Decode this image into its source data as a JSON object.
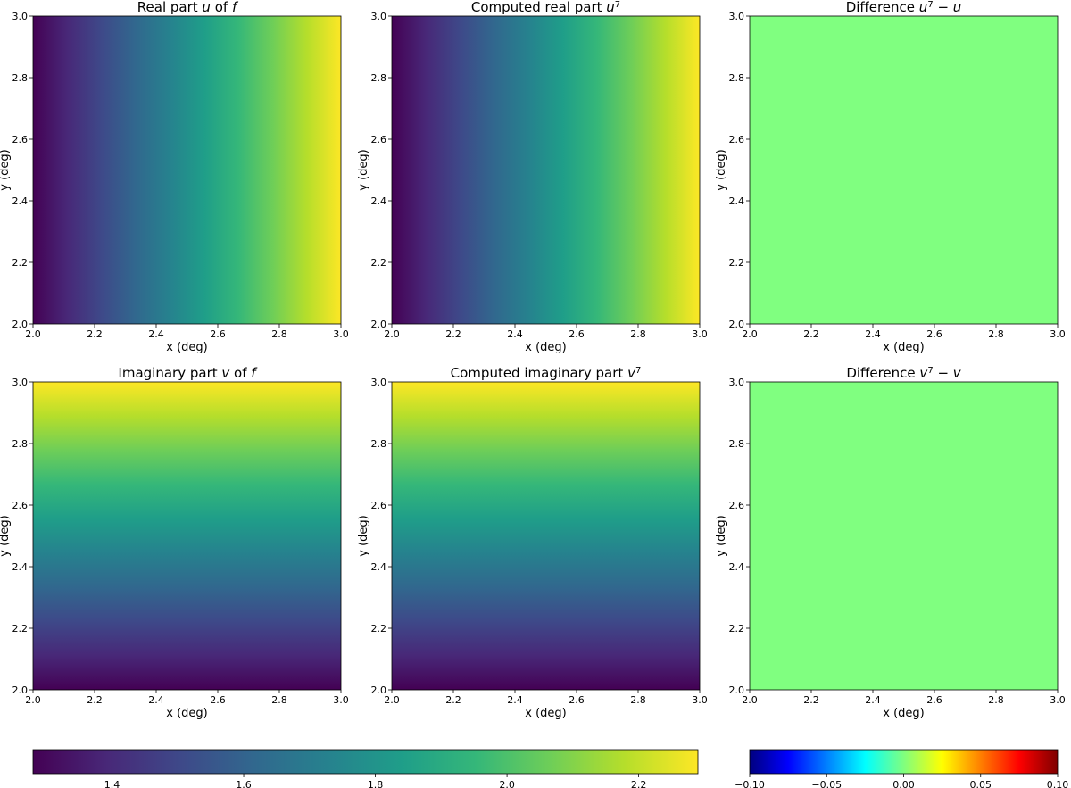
{
  "chart_data": [
    {
      "type": "heatmap",
      "title_text": "Real part",
      "title_var": "u",
      "title_tail": "of",
      "title_tail_var": "f",
      "xlabel": "x (deg)",
      "ylabel": "y (deg)",
      "xlim": [
        2.0,
        3.0
      ],
      "ylim": [
        2.0,
        3.0
      ],
      "xticks": [
        "2.0",
        "2.2",
        "2.4",
        "2.6",
        "2.8",
        "3.0"
      ],
      "yticks": [
        "2.0",
        "2.2",
        "2.4",
        "2.6",
        "2.8",
        "3.0"
      ],
      "colormap": "viridis",
      "value_range": [
        1.28,
        2.29
      ],
      "gradient": "left-to-right"
    },
    {
      "type": "heatmap",
      "title_text": "Computed real part",
      "title_var": "u",
      "title_sup": "7",
      "xlabel": "x (deg)",
      "ylabel": "y (deg)",
      "xlim": [
        2.0,
        3.0
      ],
      "ylim": [
        2.0,
        3.0
      ],
      "xticks": [
        "2.0",
        "2.2",
        "2.4",
        "2.6",
        "2.8",
        "3.0"
      ],
      "yticks": [
        "2.0",
        "2.2",
        "2.4",
        "2.6",
        "2.8",
        "3.0"
      ],
      "colormap": "viridis",
      "value_range": [
        1.28,
        2.29
      ],
      "gradient": "left-to-right"
    },
    {
      "type": "heatmap",
      "title_text": "Difference",
      "title_var": "u",
      "title_sup": "7",
      "title_minus": "−",
      "title_tail_var": "u",
      "xlabel": "x (deg)",
      "ylabel": "y (deg)",
      "xlim": [
        2.0,
        3.0
      ],
      "ylim": [
        2.0,
        3.0
      ],
      "xticks": [
        "2.0",
        "2.2",
        "2.4",
        "2.6",
        "2.8",
        "3.0"
      ],
      "yticks": [
        "2.0",
        "2.2",
        "2.4",
        "2.6",
        "2.8",
        "3.0"
      ],
      "colormap": "jet",
      "value": 0.0,
      "fill_color": "#80ff80"
    },
    {
      "type": "heatmap",
      "title_text": "Imaginary part",
      "title_var": "v",
      "title_tail": "of",
      "title_tail_var": "f",
      "xlabel": "x (deg)",
      "ylabel": "y (deg)",
      "xlim": [
        2.0,
        3.0
      ],
      "ylim": [
        2.0,
        3.0
      ],
      "xticks": [
        "2.0",
        "2.2",
        "2.4",
        "2.6",
        "2.8",
        "3.0"
      ],
      "yticks": [
        "2.0",
        "2.2",
        "2.4",
        "2.6",
        "2.8",
        "3.0"
      ],
      "colormap": "viridis",
      "value_range": [
        1.28,
        2.29
      ],
      "gradient": "bottom-to-top"
    },
    {
      "type": "heatmap",
      "title_text": "Computed imaginary part",
      "title_var": "v",
      "title_sup": "7",
      "xlabel": "x (deg)",
      "ylabel": "y (deg)",
      "xlim": [
        2.0,
        3.0
      ],
      "ylim": [
        2.0,
        3.0
      ],
      "xticks": [
        "2.0",
        "2.2",
        "2.4",
        "2.6",
        "2.8",
        "3.0"
      ],
      "yticks": [
        "2.0",
        "2.2",
        "2.4",
        "2.6",
        "2.8",
        "3.0"
      ],
      "colormap": "viridis",
      "value_range": [
        1.28,
        2.29
      ],
      "gradient": "bottom-to-top"
    },
    {
      "type": "heatmap",
      "title_text": "Difference",
      "title_var": "v",
      "title_sup": "7",
      "title_minus": "−",
      "title_tail_var": "v",
      "xlabel": "x (deg)",
      "ylabel": "y (deg)",
      "xlim": [
        2.0,
        3.0
      ],
      "ylim": [
        2.0,
        3.0
      ],
      "xticks": [
        "2.0",
        "2.2",
        "2.4",
        "2.6",
        "2.8",
        "3.0"
      ],
      "yticks": [
        "2.0",
        "2.2",
        "2.4",
        "2.6",
        "2.8",
        "3.0"
      ],
      "colormap": "jet",
      "value": 0.0,
      "fill_color": "#80ff80"
    }
  ],
  "colorbars": [
    {
      "colormap": "viridis",
      "range": [
        1.28,
        2.29
      ],
      "ticks": [
        1.4,
        1.6,
        1.8,
        2.0,
        2.2
      ],
      "tick_labels": [
        "1.4",
        "1.6",
        "1.8",
        "2.0",
        "2.2"
      ]
    },
    {
      "colormap": "jet",
      "range": [
        -0.1,
        0.1
      ],
      "ticks": [
        -0.1,
        -0.05,
        0.0,
        0.05,
        0.1
      ],
      "tick_labels": [
        "−0.10",
        "−0.05",
        "0.00",
        "0.05",
        "0.10"
      ]
    }
  ],
  "colors": {
    "viridis": [
      "#440154",
      "#482878",
      "#3e4989",
      "#31688e",
      "#26828e",
      "#1f9e89",
      "#35b779",
      "#6ece58",
      "#b5de2b",
      "#fde725"
    ],
    "jet": [
      "#00007f",
      "#0000ff",
      "#007fff",
      "#00ffff",
      "#7fff7f",
      "#ffff00",
      "#ff7f00",
      "#ff0000",
      "#7f0000"
    ]
  }
}
